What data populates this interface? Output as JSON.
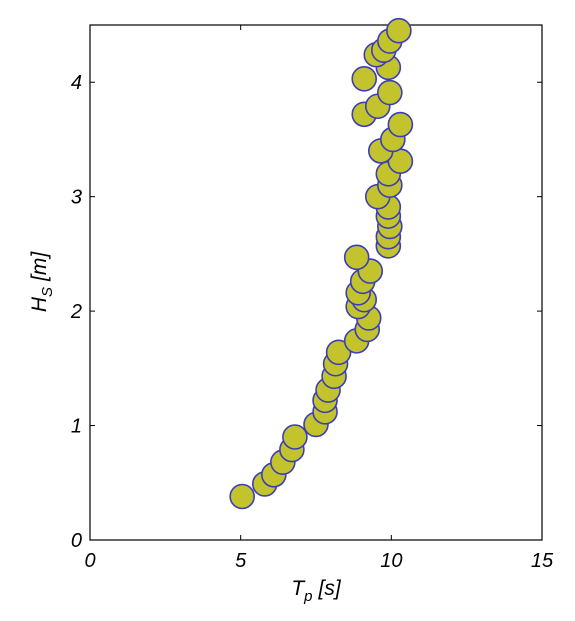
{
  "chart_data": {
    "type": "scatter",
    "title": "",
    "xlabel": {
      "base": "T",
      "sub": "p",
      "unit": "[s]"
    },
    "ylabel": {
      "base": "H",
      "sub": "S",
      "unit": "[m]"
    },
    "xlim": [
      0,
      15
    ],
    "ylim": [
      0,
      4.5
    ],
    "xticks": [
      0,
      5,
      10,
      15
    ],
    "yticks": [
      0,
      1,
      2,
      3,
      4
    ],
    "grid": false,
    "marker": {
      "fill": "#c3c42d",
      "stroke": "#3b3fb5"
    },
    "points": [
      [
        5.05,
        0.38
      ],
      [
        5.8,
        0.49
      ],
      [
        6.1,
        0.57
      ],
      [
        6.4,
        0.68
      ],
      [
        6.7,
        0.79
      ],
      [
        6.8,
        0.9
      ],
      [
        7.5,
        1.01
      ],
      [
        7.8,
        1.12
      ],
      [
        7.8,
        1.22
      ],
      [
        7.9,
        1.31
      ],
      [
        8.1,
        1.43
      ],
      [
        8.15,
        1.54
      ],
      [
        8.25,
        1.64
      ],
      [
        8.85,
        1.74
      ],
      [
        9.2,
        1.84
      ],
      [
        9.25,
        1.94
      ],
      [
        8.9,
        2.04
      ],
      [
        9.1,
        2.1
      ],
      [
        8.9,
        2.16
      ],
      [
        9.05,
        2.26
      ],
      [
        9.3,
        2.35
      ],
      [
        8.85,
        2.47
      ],
      [
        9.9,
        2.57
      ],
      [
        9.9,
        2.65
      ],
      [
        9.95,
        2.74
      ],
      [
        9.9,
        2.83
      ],
      [
        9.9,
        2.91
      ],
      [
        9.55,
        3.0
      ],
      [
        9.95,
        3.1
      ],
      [
        9.9,
        3.2
      ],
      [
        10.3,
        3.31
      ],
      [
        9.65,
        3.4
      ],
      [
        10.05,
        3.5
      ],
      [
        10.3,
        3.63
      ],
      [
        9.1,
        3.72
      ],
      [
        9.55,
        3.79
      ],
      [
        9.95,
        3.91
      ],
      [
        9.1,
        4.03
      ],
      [
        9.9,
        4.13
      ],
      [
        9.5,
        4.24
      ],
      [
        9.75,
        4.28
      ],
      [
        9.95,
        4.36
      ],
      [
        10.25,
        4.45
      ]
    ]
  }
}
